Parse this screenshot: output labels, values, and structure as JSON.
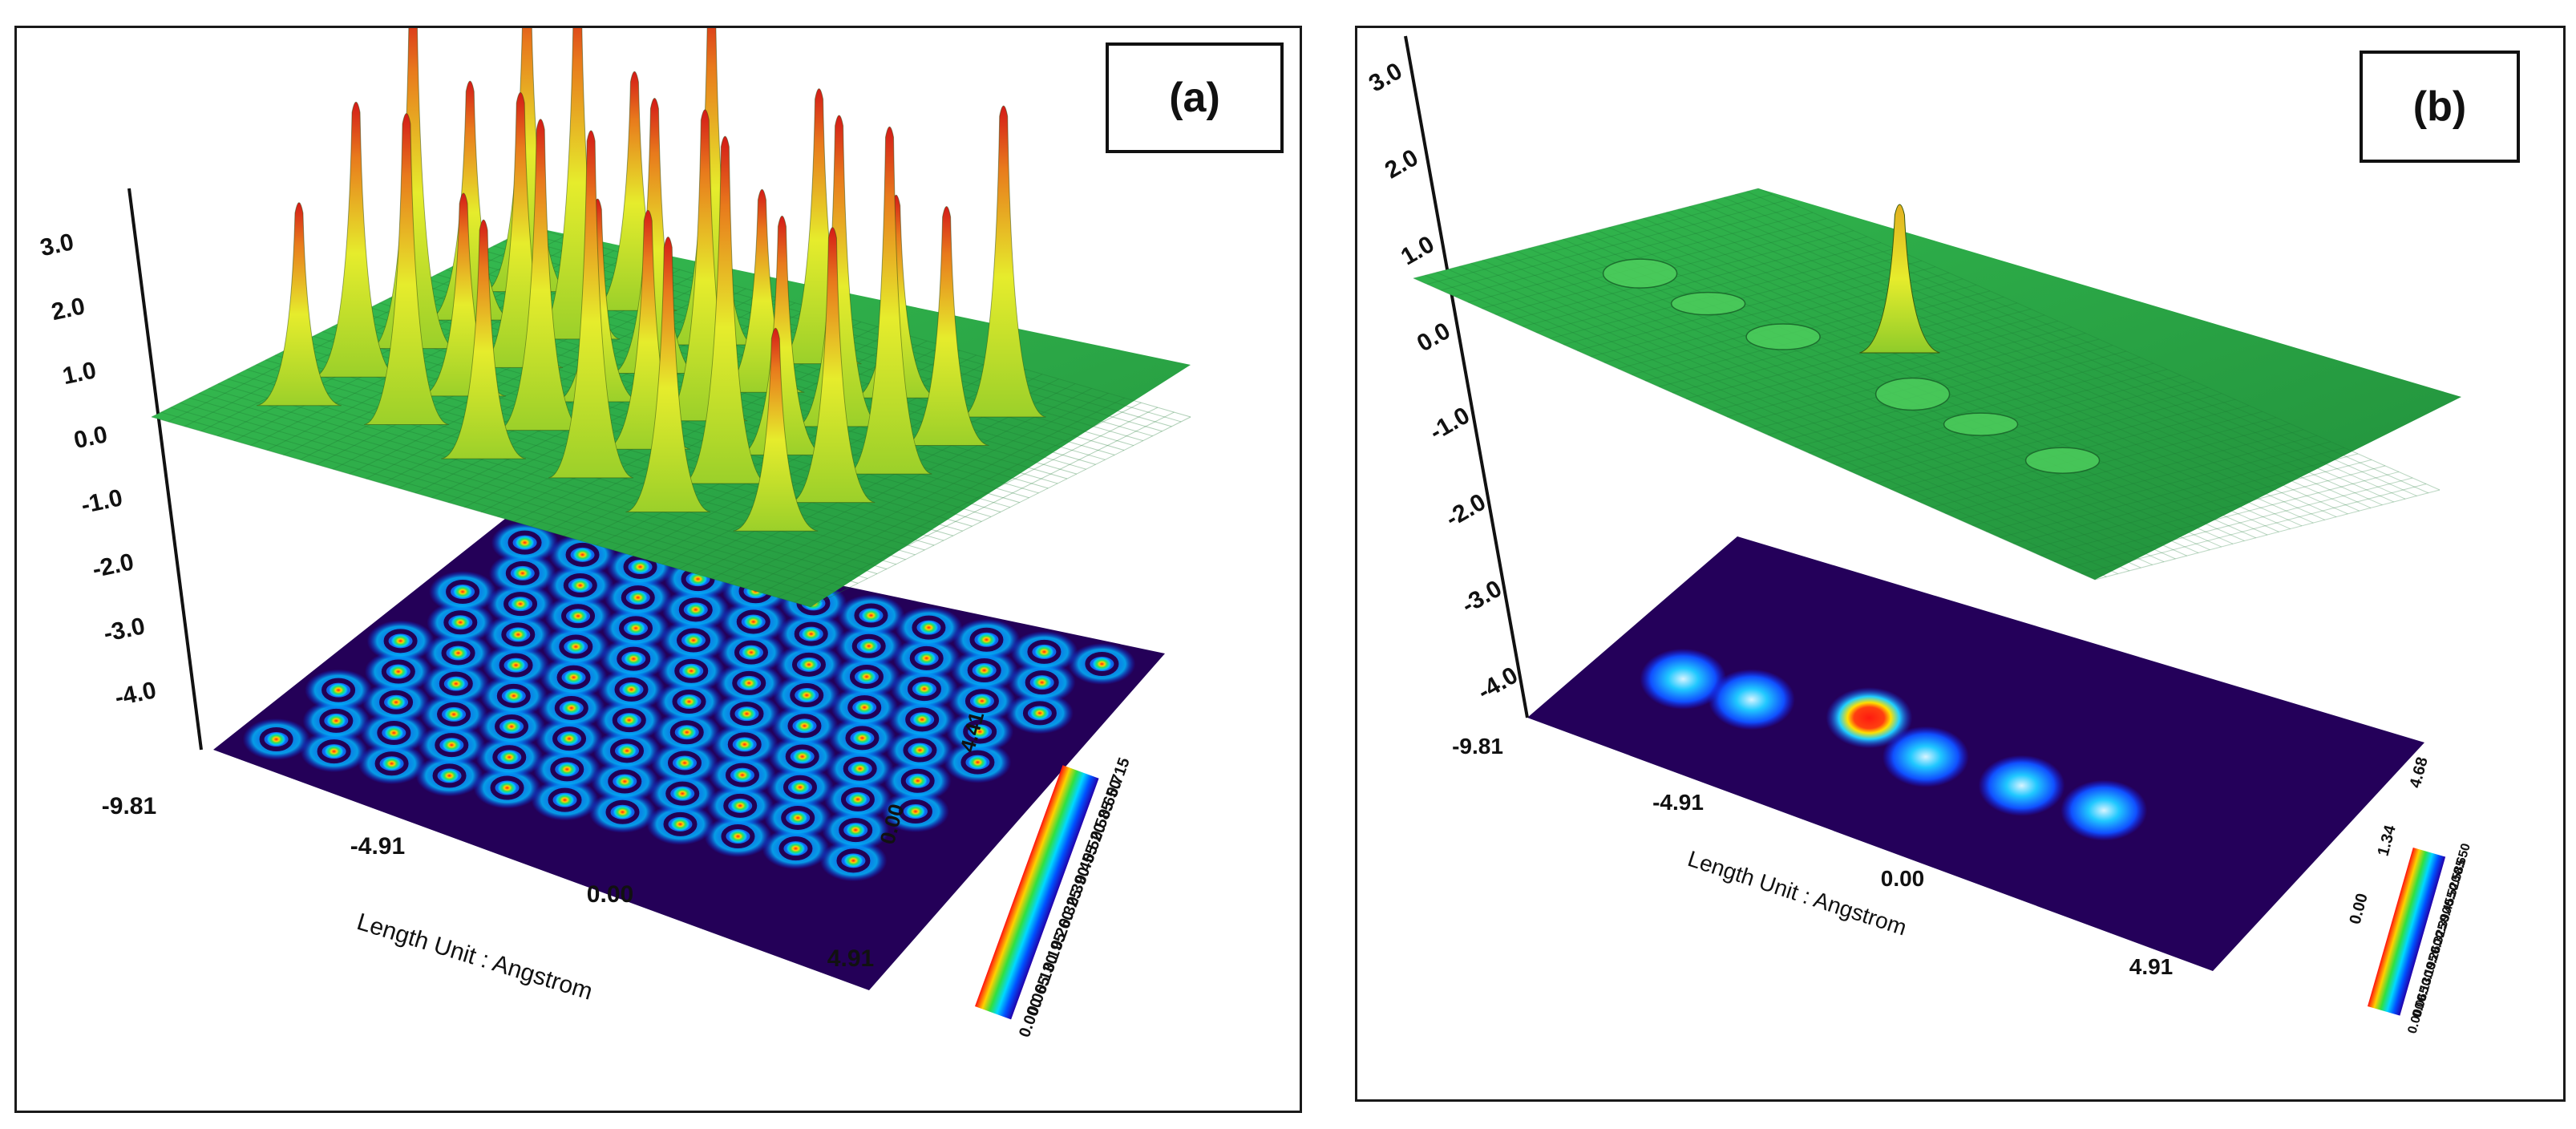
{
  "colors": {
    "surface_top": "#2ea84a",
    "surface_bottom": "#37b84f",
    "contour_bg": "#24005a",
    "peak_low": "#e8ef2a",
    "peak_high": "#e2201a",
    "axis": "#111111"
  },
  "chart_data": [
    {
      "type": "heatmap",
      "panel_label": "(a)",
      "z_axis_ticks": [
        "3.0",
        "2.0",
        "1.0",
        "0.0",
        "-1.0",
        "-2.0",
        "-3.0",
        "-4.0"
      ],
      "x_ticks": [
        "-9.81",
        "-4.91",
        "0.00",
        "4.91"
      ],
      "y_ticks": [
        "0.00",
        "4.41"
      ],
      "xlabel": "Length Unit : Angstrom",
      "colorbar": {
        "min": 0.0,
        "max": 0.715,
        "ticks": [
          "0.000",
          "0.065",
          "0.130",
          "0.195",
          "0.260",
          "0.325",
          "0.390",
          "0.455",
          "0.520",
          "0.585",
          "0.650",
          "0.715"
        ]
      },
      "description": "3D electron density surface with many sharp peaks above a 2D contour map of a porous hexagonal lattice"
    },
    {
      "type": "heatmap",
      "panel_label": "(b)",
      "z_axis_ticks": [
        "3.0",
        "2.0",
        "1.0",
        "0.0",
        "-1.0",
        "-2.0",
        "-3.0",
        "-4.0"
      ],
      "x_ticks": [
        "-9.81",
        "-4.91",
        "0.00",
        "4.91"
      ],
      "y_ticks": [
        "0.00",
        "1.34",
        "4.68"
      ],
      "xlabel": "Length Unit : Angstrom",
      "colorbar": {
        "min": 0.0,
        "max": 0.65,
        "ticks": [
          "0.000",
          "0.065",
          "0.130",
          "0.195",
          "0.260",
          "0.325",
          "0.390",
          "0.455",
          "0.520",
          "0.585",
          "0.650"
        ]
      },
      "description": "3D surface with a single sharp peak and small bumps above a contour map showing a row of isolated blobs"
    }
  ]
}
